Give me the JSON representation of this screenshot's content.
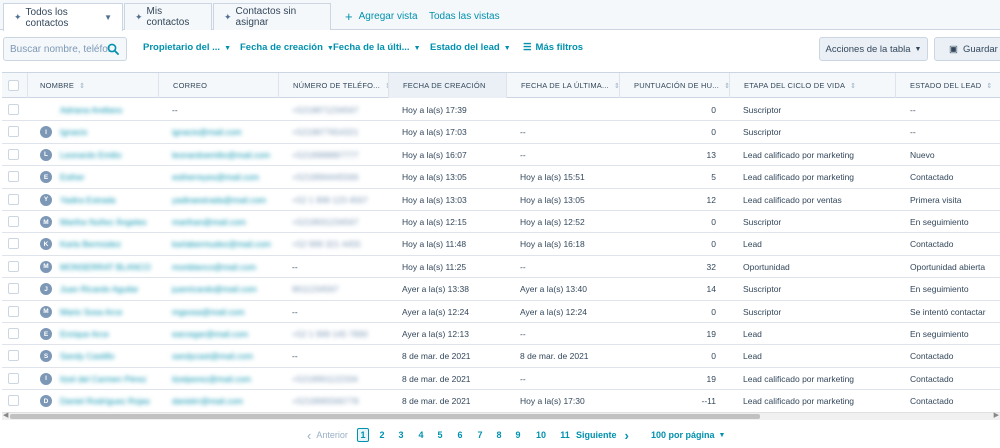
{
  "tabs": [
    {
      "label": "Todos los contactos",
      "active": true
    },
    {
      "label": "Mis contactos",
      "active": false
    },
    {
      "label": "Contactos sin asignar",
      "active": false
    }
  ],
  "add_view_label": "Agregar vista",
  "all_views_label": "Todas las vistas",
  "search": {
    "placeholder": "Buscar nombre, teléfon"
  },
  "filters": {
    "owner": "Propietario del ...",
    "created": "Fecha de creación",
    "last_activity": "Fecha de la últi...",
    "lead_status": "Estado del lead",
    "more": "Más filtros"
  },
  "actions": {
    "table_actions": "Acciones de la tabla",
    "save_view": "Guardar vis"
  },
  "columns": {
    "name": "Nombre",
    "email": "Correo",
    "phone": "Número de teléfo...",
    "created": "Fecha de creación",
    "last_activity": "Fecha de la última...",
    "score": "Puntuación de hu...",
    "lifecycle": "Etapa del ciclo de vida",
    "lead_status": "Estado del lead"
  },
  "rows": [
    {
      "initial": "",
      "name": "Adriana Arellano",
      "email": "--",
      "phone": "+5219871234567",
      "created": "Hoy a la(s) 17:39",
      "last": "",
      "score": "0",
      "stage": "Suscriptor",
      "status": "--"
    },
    {
      "initial": "I",
      "name": "Ignacio",
      "email": "ignacio@mail.com",
      "phone": "+5219877654321",
      "created": "Hoy a la(s) 17:03",
      "last": "--",
      "score": "0",
      "stage": "Suscriptor",
      "status": "--"
    },
    {
      "initial": "L",
      "name": "Leonardo Emilio",
      "email": "leonardoemilio@mail.com",
      "phone": "+5219988887777",
      "created": "Hoy a la(s) 16:07",
      "last": "--",
      "score": "13",
      "stage": "Lead calificado por marketing",
      "status": "Nuevo"
    },
    {
      "initial": "E",
      "name": "Esther",
      "email": "estherreyes@mail.com",
      "phone": "+5219994445566",
      "created": "Hoy a la(s) 13:05",
      "last": "Hoy a la(s) 15:51",
      "score": "5",
      "stage": "Lead calificado por marketing",
      "status": "Contactado"
    },
    {
      "initial": "Y",
      "name": "Yadira Estrada",
      "email": "yadiraestrada@mail.com",
      "phone": "+52 1 999 123 4567",
      "created": "Hoy a la(s) 13:03",
      "last": "Hoy a la(s) 13:05",
      "score": "12",
      "stage": "Lead calificado por ventas",
      "status": "Primera visita"
    },
    {
      "initial": "M",
      "name": "Martha Nuñez Ángeles",
      "email": "marthan@mail.com",
      "phone": "+5219931234567",
      "created": "Hoy a la(s) 12:15",
      "last": "Hoy a la(s) 12:52",
      "score": "0",
      "stage": "Suscriptor",
      "status": "En seguimiento"
    },
    {
      "initial": "K",
      "name": "Karla Bermúdez",
      "email": "karlabermudez@mail.com",
      "phone": "+52 999 321 4455",
      "created": "Hoy a la(s) 11:48",
      "last": "Hoy a la(s) 16:18",
      "score": "0",
      "stage": "Lead",
      "status": "Contactado"
    },
    {
      "initial": "M",
      "name": "MONSERRAT BLANCO",
      "email": "monblanco@mail.com",
      "phone": "--",
      "created": "Hoy a la(s) 11:25",
      "last": "--",
      "score": "32",
      "stage": "Oportunidad",
      "status": "Oportunidad abierta"
    },
    {
      "initial": "J",
      "name": "Juan Ricardo Aguilar",
      "email": "juanricardo@mail.com",
      "phone": "9611234567",
      "created": "Ayer a la(s) 13:38",
      "last": "Ayer a la(s) 13:40",
      "score": "14",
      "stage": "Suscriptor",
      "status": "En seguimiento"
    },
    {
      "initial": "M",
      "name": "Mario Sosa Arce",
      "email": "mgsosa@mail.com",
      "phone": "--",
      "created": "Ayer a la(s) 12:24",
      "last": "Ayer a la(s) 12:24",
      "score": "0",
      "stage": "Suscriptor",
      "status": "Se intentó contactar"
    },
    {
      "initial": "E",
      "name": "Enrique Arce",
      "email": "earcegar@mail.com",
      "phone": "+52 1 999 145 7890",
      "created": "Ayer a la(s) 12:13",
      "last": "--",
      "score": "19",
      "stage": "Lead",
      "status": "En seguimiento"
    },
    {
      "initial": "S",
      "name": "Sandy Castillo",
      "email": "sandycast@mail.com",
      "phone": "--",
      "created": "8 de mar. de 2021",
      "last": "8 de mar. de 2021",
      "score": "0",
      "stage": "Lead",
      "status": "Contactado"
    },
    {
      "initial": "I",
      "name": "Itzel del Carmen Pérez",
      "email": "itzelperez@mail.com",
      "phone": "+5219991122334",
      "created": "8 de mar. de 2021",
      "last": "--",
      "score": "19",
      "stage": "Lead calificado por marketing",
      "status": "Contactado"
    },
    {
      "initial": "D",
      "name": "Daniel Rodríguez Rojas",
      "email": "danielrr@mail.com",
      "phone": "+5219995566778",
      "created": "8 de mar. de 2021",
      "last": "Hoy a la(s) 17:30",
      "score": "--11",
      "stage": "Lead calificado por marketing",
      "status": "Contactado"
    }
  ],
  "pagination": {
    "prev": "Anterior",
    "next": "Siguiente",
    "pages": [
      "1",
      "2",
      "3",
      "4",
      "5",
      "6",
      "7",
      "8",
      "9",
      "10",
      "11"
    ],
    "current": "1",
    "per_page": "100 por página"
  },
  "colors": {
    "accent": "#0091ae",
    "text": "#33475b",
    "border": "#cbd6e2",
    "header_bg": "#f5f8fa"
  }
}
